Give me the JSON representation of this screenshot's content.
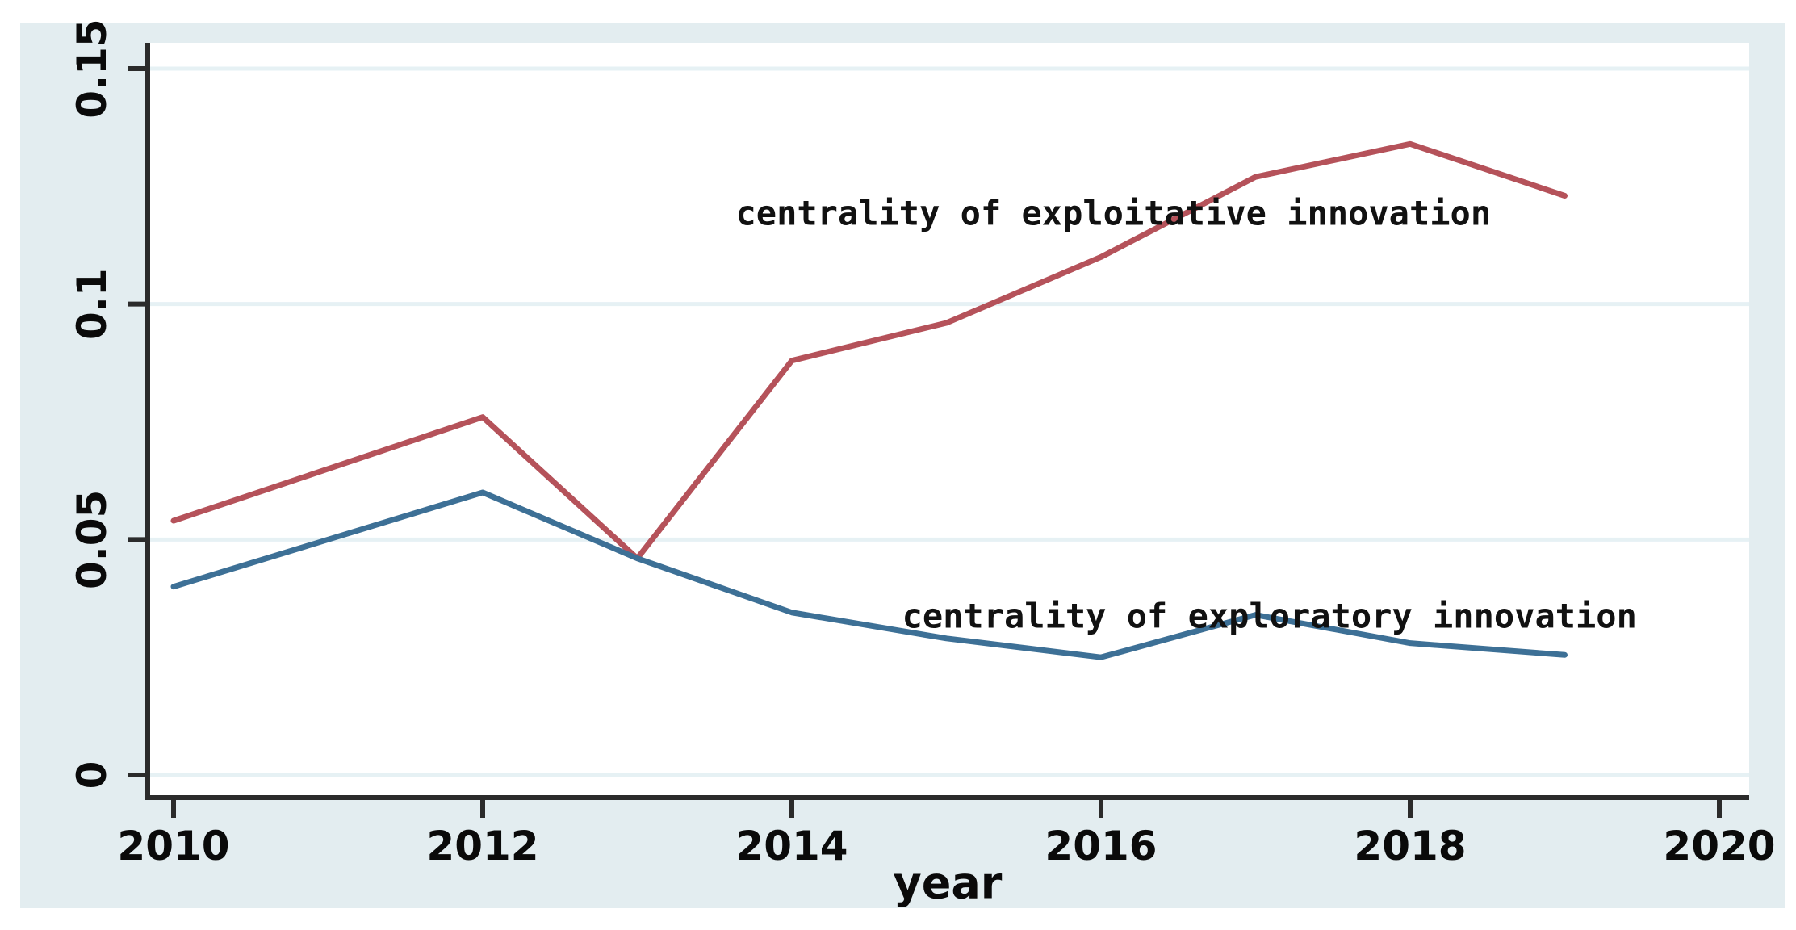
{
  "figure": {
    "kind": "stata-line-graph",
    "background_color": "#e3edf0",
    "plot_background_color": "#ffffff",
    "gridline_color": "#e6f1f4",
    "axis_color": "#2b2b2b",
    "text_color": "#0a0a0a"
  },
  "chart_data": {
    "type": "line",
    "x": [
      2010,
      2011,
      2012,
      2013,
      2014,
      2015,
      2016,
      2017,
      2018,
      2019
    ],
    "series": [
      {
        "name": "centrality of exploitative innovation",
        "color": "#b5525a",
        "values": [
          0.054,
          0.065,
          0.076,
          0.046,
          0.088,
          0.096,
          0.11,
          0.127,
          0.134,
          0.123
        ]
      },
      {
        "name": "centrality of exploratory innovation",
        "color": "#3d7096",
        "values": [
          0.04,
          0.05,
          0.06,
          0.046,
          0.0345,
          0.029,
          0.025,
          0.034,
          0.028,
          0.0255
        ]
      }
    ],
    "title": "",
    "xlabel": "year",
    "ylabel": "",
    "xlim": [
      2010,
      2020
    ],
    "ylim": [
      0,
      0.15
    ],
    "xticks": {
      "values": [
        2010,
        2012,
        2014,
        2016,
        2018,
        2020
      ],
      "labels": [
        "2010",
        "2012",
        "2014",
        "2016",
        "2018",
        "2020"
      ]
    },
    "yticks": {
      "values": [
        0,
        0.05,
        0.1,
        0.15
      ],
      "labels": [
        "0",
        "0.05",
        "0.1",
        "0.15"
      ]
    },
    "grid": "horizontal",
    "legend_position": "none",
    "annotations": [
      {
        "text": "centrality of exploitative innovation",
        "x": 2016.08,
        "y": 0.1193
      },
      {
        "text": "centrality of exploratory innovation",
        "x": 2017.09,
        "y": 0.0338
      }
    ],
    "markers": "none"
  }
}
